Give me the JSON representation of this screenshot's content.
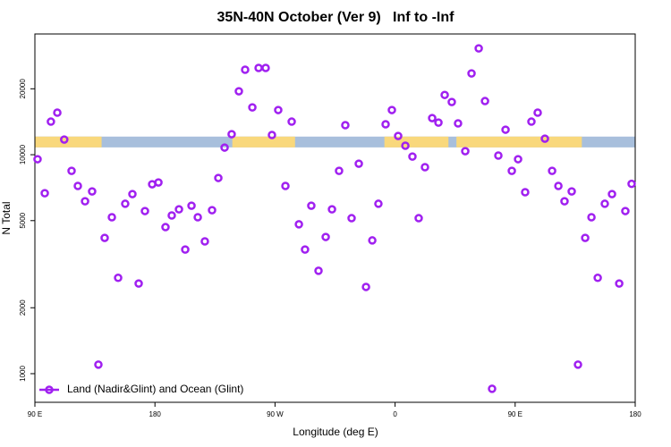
{
  "chart_data": {
    "type": "scatter",
    "title": "35N-40N October (Ver 9)   Inf to -Inf",
    "xlabel": "Longitude (deg E)",
    "ylabel": "N Total",
    "log_y": true,
    "xlim": [
      90,
      540
    ],
    "ylim": [
      740,
      35600
    ],
    "xticks": [
      {
        "value": 90,
        "label": "90 E"
      },
      180,
      {
        "value": 270,
        "label": "90 W"
      },
      {
        "value": 360,
        "label": "0"
      },
      {
        "value": 450,
        "label": "90 E"
      },
      {
        "value": 540,
        "label": "180"
      }
    ],
    "yticks": [
      1000,
      2000,
      5000,
      10000,
      20000
    ],
    "legend": "bottom-left",
    "band": {
      "ylim": [
        10800,
        12100
      ],
      "ocean_color": "#a8bfdc",
      "land_color": "#f9d87c",
      "land": [
        [
          90,
          140
        ],
        [
          238,
          285
        ],
        [
          352,
          400
        ],
        [
          406,
          500
        ]
      ]
    },
    "series": [
      {
        "name": "Land (Nadir&Glint) and Ocean (Glint)",
        "color": "#a020f0",
        "x": [
          92,
          97.4,
          102,
          106.8,
          112,
          117.5,
          122.2,
          127.6,
          132.9,
          137.6,
          142.3,
          147.7,
          152.4,
          157.7,
          163.1,
          167.8,
          172.5,
          177.9,
          182.6,
          187.9,
          192.6,
          198,
          202.7,
          207.4,
          212.1,
          217.4,
          222.8,
          227.5,
          232.2,
          237.5,
          242.9,
          247.6,
          253,
          257.7,
          263,
          267.7,
          272.4,
          277.8,
          282.5,
          287.9,
          292.5,
          297.2,
          302.6,
          308,
          312.7,
          318,
          322.7,
          327.4,
          332.8,
          338.2,
          342.9,
          347.5,
          352.9,
          357.6,
          362.3,
          367.7,
          373,
          377.7,
          382.4,
          387.8,
          392.5,
          397.2,
          402.5,
          407.2,
          412.6,
          417.3,
          422.7,
          427.4,
          432.7,
          437.4,
          442.8,
          447.5,
          452.2,
          457.5,
          462.2,
          466.9,
          472.3,
          477.7,
          482.4,
          487,
          492.4,
          497.1,
          502.5,
          507.2,
          511.9,
          517.2,
          522.6,
          528,
          532.6,
          537.3
        ],
        "values": [
          9540,
          6670,
          14160,
          15560,
          11730,
          8440,
          7200,
          6130,
          6800,
          1100,
          4170,
          5180,
          2740,
          5970,
          6610,
          2580,
          5530,
          7330,
          7470,
          4670,
          5280,
          5630,
          3690,
          5850,
          5180,
          4020,
          5580,
          7830,
          10780,
          12410,
          19490,
          24440,
          16450,
          24910,
          24910,
          12300,
          16000,
          7200,
          14160,
          4810,
          3690,
          5850,
          2950,
          4210,
          5630,
          8440,
          13640,
          5130,
          9100,
          2490,
          4060,
          5970,
          13770,
          16000,
          12180,
          10990,
          9810,
          5130,
          8770,
          14700,
          14020,
          18750,
          17410,
          13900,
          10380,
          23510,
          30590,
          17580,
          853,
          9910,
          13010,
          8440,
          9540,
          6740,
          14160,
          15560,
          11840,
          8440,
          7200,
          6130,
          6800,
          1100,
          4170,
          5180,
          2740,
          5970,
          6610,
          2580,
          5530,
          7360
        ]
      }
    ]
  }
}
